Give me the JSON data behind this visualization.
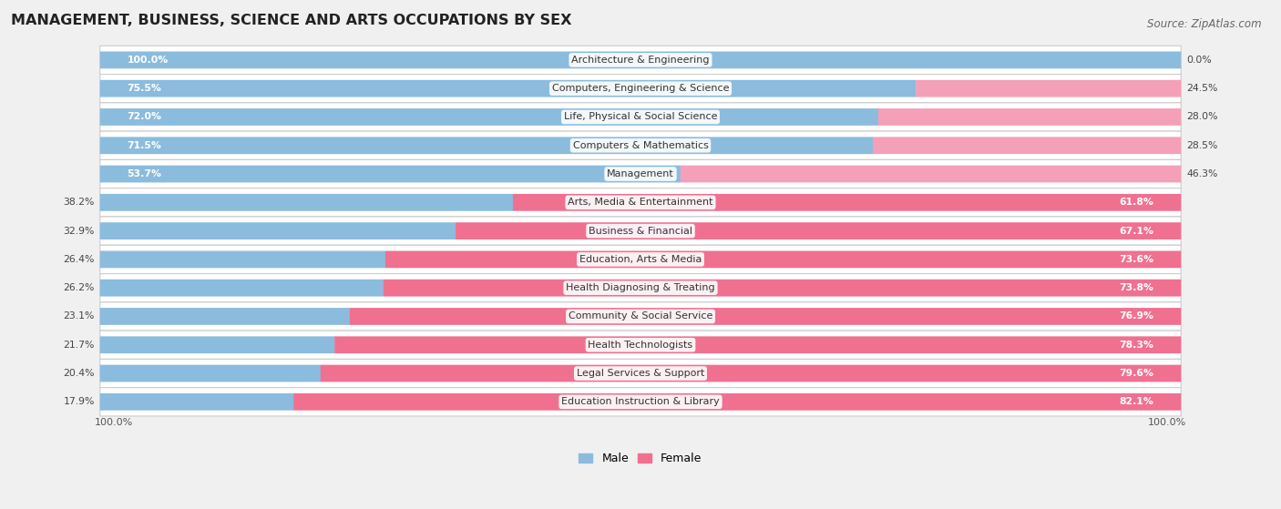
{
  "title": "MANAGEMENT, BUSINESS, SCIENCE AND ARTS OCCUPATIONS BY SEX",
  "source": "Source: ZipAtlas.com",
  "categories": [
    "Architecture & Engineering",
    "Computers, Engineering & Science",
    "Life, Physical & Social Science",
    "Computers & Mathematics",
    "Management",
    "Arts, Media & Entertainment",
    "Business & Financial",
    "Education, Arts & Media",
    "Health Diagnosing & Treating",
    "Community & Social Service",
    "Health Technologists",
    "Legal Services & Support",
    "Education Instruction & Library"
  ],
  "male": [
    100.0,
    75.5,
    72.0,
    71.5,
    53.7,
    38.2,
    32.9,
    26.4,
    26.2,
    23.1,
    21.7,
    20.4,
    17.9
  ],
  "female": [
    0.0,
    24.5,
    28.0,
    28.5,
    46.3,
    61.8,
    67.1,
    73.6,
    73.8,
    76.9,
    78.3,
    79.6,
    82.1
  ],
  "male_color": "#8bbcdd",
  "female_color": "#f07090",
  "female_color_light": "#f4a0b8",
  "background_color": "#f0f0f0",
  "row_bg_color": "#ffffff",
  "title_fontsize": 11.5,
  "label_fontsize": 8.0,
  "pct_fontsize": 7.8,
  "source_fontsize": 8.5
}
